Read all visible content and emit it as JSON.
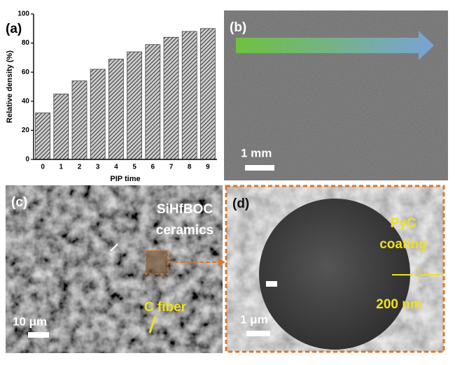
{
  "chart_data": {
    "type": "bar",
    "panel_label": "(a)",
    "x_label": "PIP time",
    "y_label": "Relative density (%)",
    "categories": [
      "0",
      "1",
      "2",
      "3",
      "4",
      "5",
      "6",
      "7",
      "8",
      "9"
    ],
    "values": [
      32,
      45,
      54,
      62,
      69,
      74,
      79,
      84,
      88,
      90
    ],
    "color": "#444444",
    "hatch": true,
    "ylim": [
      0,
      100
    ],
    "yticks": [
      0,
      20,
      40,
      60,
      80,
      100
    ]
  },
  "panels": {
    "b": {
      "label": "(b)",
      "scale": "1 mm"
    },
    "c": {
      "label": "(c)",
      "matrix_line1": "SiHfBOC",
      "matrix_line2": "ceramics",
      "fiber": "C fiber",
      "scale": "10 μm"
    },
    "d": {
      "label": "(d)",
      "coating_line1": "PyC",
      "coating_line2": "coating",
      "thickness": "200 nm",
      "scale": "1 μm"
    }
  }
}
